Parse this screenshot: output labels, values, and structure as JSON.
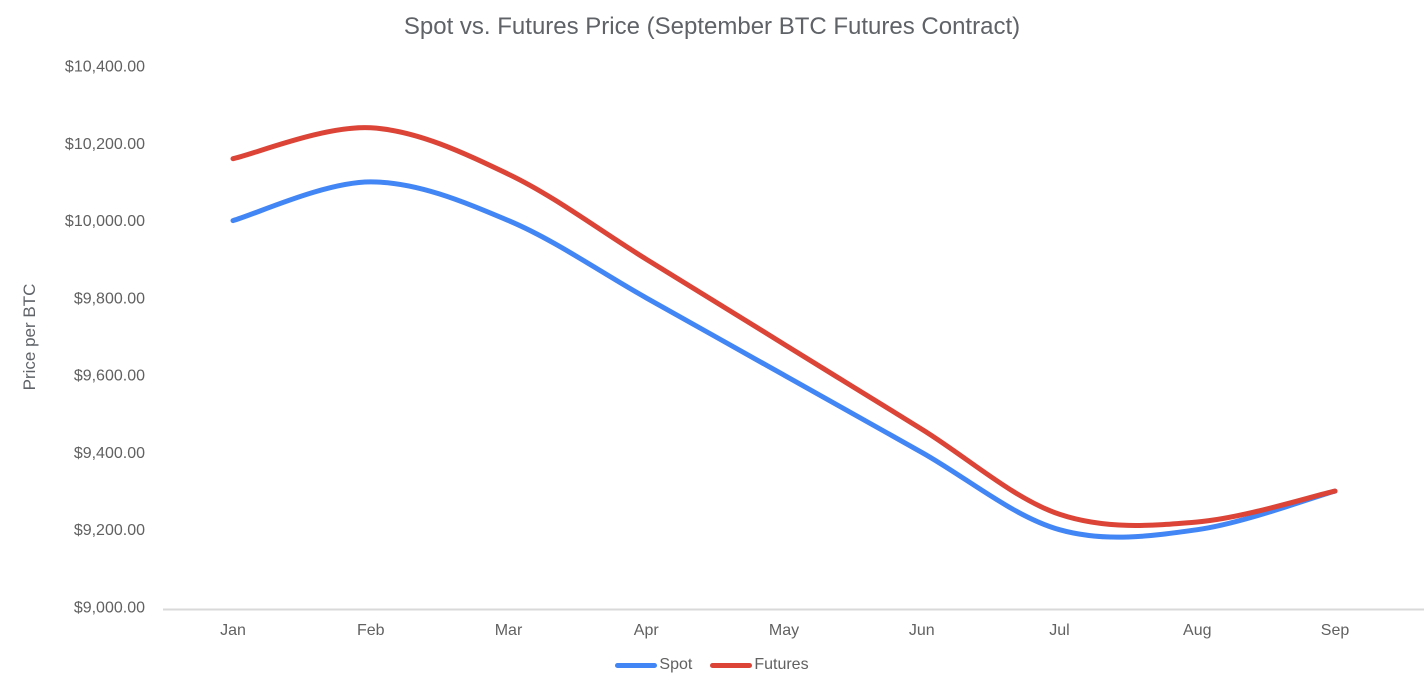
{
  "chart_data": {
    "type": "line",
    "title": "Spot vs. Futures Price (September BTC Futures Contract)",
    "ylabel": "Price per BTC",
    "xlabel": "",
    "categories": [
      "Jan",
      "Feb",
      "Mar",
      "Apr",
      "May",
      "Jun",
      "Jul",
      "Aug",
      "Sep"
    ],
    "series": [
      {
        "name": "Spot",
        "color": "#4285F4",
        "values": [
          10000,
          10100,
          10000,
          9800,
          9600,
          9400,
          9200,
          9200,
          9300
        ]
      },
      {
        "name": "Futures",
        "color": "#DB4437",
        "values": [
          10160,
          10240,
          10120,
          9900,
          9680,
          9460,
          9240,
          9220,
          9300
        ]
      }
    ],
    "ylim": [
      9000,
      10400
    ],
    "ytick_step": 200,
    "ytick_labels": [
      "$9,000.00",
      "$9,200.00",
      "$9,400.00",
      "$9,600.00",
      "$9,800.00",
      "$10,000.00",
      "$10,200.00",
      "$10,400.00"
    ],
    "grid": false,
    "line_smooth": true,
    "legend_position": "bottom"
  },
  "colors": {
    "axis_line": "#d9d9d9",
    "tick_text": "#616161",
    "title_text": "#5f6368"
  }
}
